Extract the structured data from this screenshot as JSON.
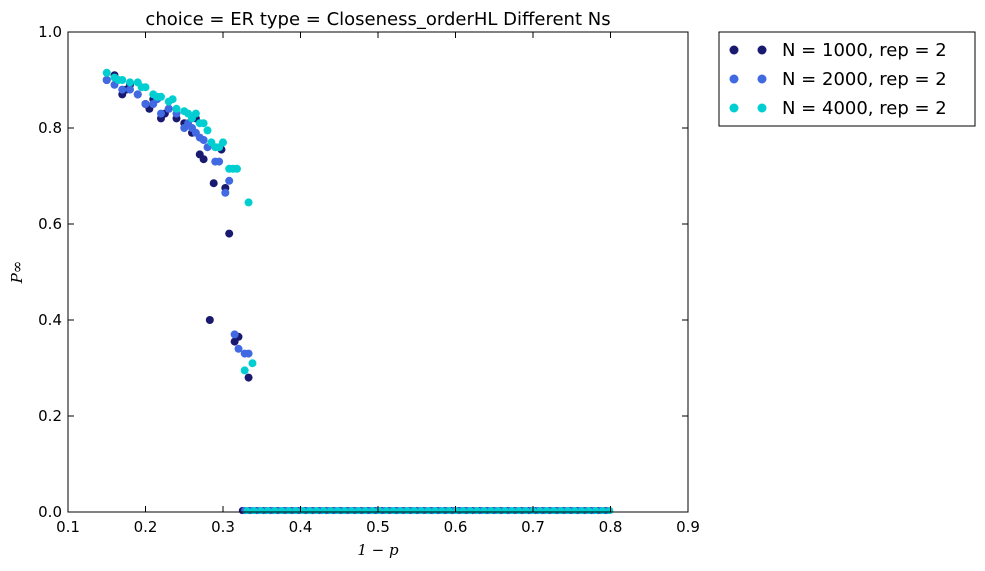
{
  "chart_data": {
    "type": "scatter",
    "title": "choice = ER type = Closeness_orderHL Different Ns",
    "xlabel": "1 − p",
    "ylabel": "P∞",
    "xlim": [
      0.1,
      0.9
    ],
    "ylim": [
      0.0,
      1.0
    ],
    "xticks": [
      "0.1",
      "0.2",
      "0.3",
      "0.4",
      "0.5",
      "0.6",
      "0.7",
      "0.8",
      "0.9"
    ],
    "yticks": [
      "0.0",
      "0.2",
      "0.4",
      "0.6",
      "0.8",
      "1.0"
    ],
    "grid": false,
    "legend": "outside-top-right",
    "series": [
      {
        "name": "N = 1000, rep = 2",
        "color": "#191970",
        "x": [
          0.15,
          0.16,
          0.17,
          0.175,
          0.18,
          0.19,
          0.2,
          0.205,
          0.21,
          0.22,
          0.225,
          0.23,
          0.24,
          0.25,
          0.26,
          0.265,
          0.27,
          0.275,
          0.283,
          0.288,
          0.298,
          0.303,
          0.308,
          0.315,
          0.32,
          0.333
        ],
        "y": [
          0.9,
          0.91,
          0.87,
          0.88,
          0.89,
          0.87,
          0.85,
          0.84,
          0.86,
          0.82,
          0.83,
          0.84,
          0.82,
          0.81,
          0.79,
          0.82,
          0.745,
          0.735,
          0.4,
          0.685,
          0.755,
          0.675,
          0.58,
          0.355,
          0.365,
          0.28
        ]
      },
      {
        "name": "N = 2000, rep = 2",
        "color": "#4169e1",
        "x": [
          0.15,
          0.16,
          0.17,
          0.18,
          0.19,
          0.2,
          0.21,
          0.215,
          0.22,
          0.23,
          0.24,
          0.25,
          0.255,
          0.26,
          0.265,
          0.27,
          0.275,
          0.28,
          0.29,
          0.295,
          0.303,
          0.308,
          0.315,
          0.32,
          0.328,
          0.333
        ],
        "y": [
          0.9,
          0.89,
          0.88,
          0.88,
          0.87,
          0.85,
          0.85,
          0.86,
          0.83,
          0.84,
          0.83,
          0.8,
          0.81,
          0.8,
          0.79,
          0.78,
          0.775,
          0.76,
          0.73,
          0.73,
          0.665,
          0.69,
          0.37,
          0.34,
          0.33,
          0.33
        ]
      },
      {
        "name": "N = 4000, rep = 2",
        "color": "#00ced1",
        "x": [
          0.15,
          0.16,
          0.165,
          0.17,
          0.18,
          0.19,
          0.195,
          0.2,
          0.21,
          0.215,
          0.22,
          0.23,
          0.235,
          0.24,
          0.25,
          0.255,
          0.26,
          0.265,
          0.27,
          0.275,
          0.28,
          0.285,
          0.29,
          0.295,
          0.3,
          0.308,
          0.313,
          0.318,
          0.328,
          0.333,
          0.338
        ],
        "y": [
          0.915,
          0.905,
          0.9,
          0.9,
          0.895,
          0.895,
          0.885,
          0.885,
          0.87,
          0.865,
          0.865,
          0.855,
          0.86,
          0.84,
          0.835,
          0.83,
          0.82,
          0.83,
          0.81,
          0.81,
          0.795,
          0.77,
          0.76,
          0.76,
          0.77,
          0.715,
          0.715,
          0.715,
          0.295,
          0.645,
          0.31
        ]
      }
    ],
    "zero_band": {
      "note_values": "near-zero P∞ values observed for 1 − p from 0.325 to 0.80 in all series",
      "x_start": 0.325,
      "x_end": 0.8,
      "y": 0.003
    }
  }
}
